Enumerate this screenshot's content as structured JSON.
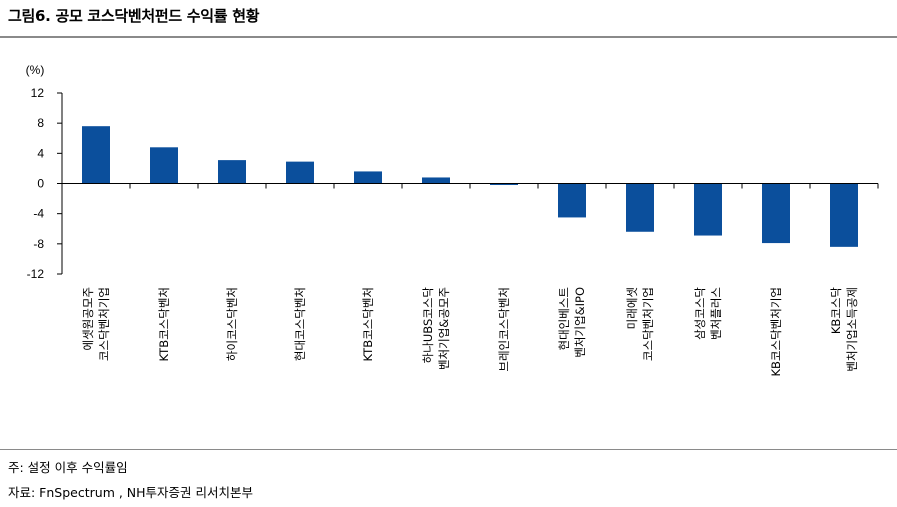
{
  "title": "그림6. 공모 코스닥벤처펀드 수익률 현황",
  "footnotes": {
    "note": "주: 설정 이후 수익률임",
    "source": "자료: FnSpectrum , NH투자증권 리서치본부"
  },
  "colors": {
    "bar": "#0b4f9c",
    "axis": "#000000",
    "rule": "#8a8a8a"
  },
  "chart_data": {
    "type": "bar",
    "title": "",
    "xlabel": "",
    "ylabel": "",
    "unit_label": "(%)",
    "ylim": [
      -12,
      12
    ],
    "yticks": [
      12,
      8,
      4,
      0,
      -4,
      -8,
      -12
    ],
    "grid": false,
    "categories": [
      [
        "에셋원공모주",
        "코스닥벤처기업"
      ],
      [
        "KTB코스닥벤처"
      ],
      [
        "하이코스닥벤처"
      ],
      [
        "현대코스닥벤처"
      ],
      [
        "KTB코스닥벤처"
      ],
      [
        "하나UBS코스닥",
        "벤처기업&공모주"
      ],
      [
        "브레인코스닥벤처"
      ],
      [
        "현대인베스트",
        "벤처기업&IPO"
      ],
      [
        "미래에셋",
        "코스닥벤처기업"
      ],
      [
        "삼성코스닥",
        "벤처플러스"
      ],
      [
        "KB코스닥벤처기업"
      ],
      [
        "KB코스닥",
        "벤처기업소득공제"
      ]
    ],
    "values": [
      7.6,
      4.8,
      3.1,
      2.9,
      1.6,
      0.8,
      -0.2,
      -4.5,
      -6.4,
      -6.9,
      -7.9,
      -8.4
    ]
  }
}
